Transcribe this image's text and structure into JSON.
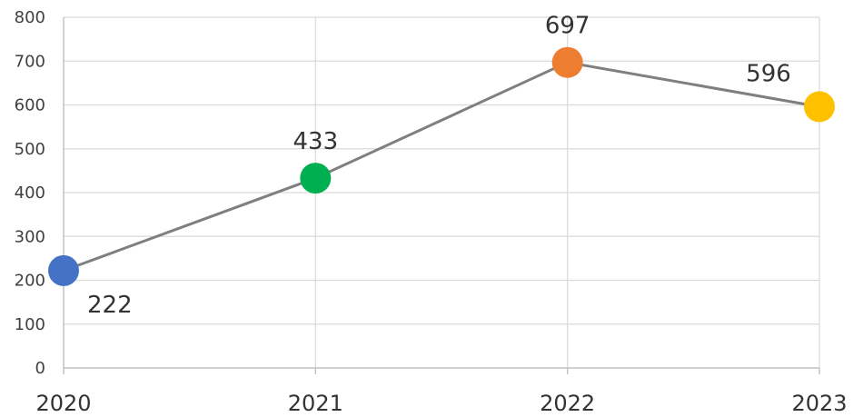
{
  "chart_data": {
    "type": "line",
    "title": "",
    "xlabel": "",
    "ylabel": "",
    "categories": [
      "2020",
      "2021",
      "2022",
      "2023"
    ],
    "series": [
      {
        "values": [
          222,
          433,
          697,
          596
        ],
        "point_colors": [
          "#4472c4",
          "#00b050",
          "#ed7d31",
          "#ffc000"
        ],
        "line_color": "#7f7f7f"
      }
    ],
    "data_labels": [
      "222",
      "433",
      "697",
      "596"
    ],
    "data_label_positions": [
      "below",
      "above",
      "above",
      "above"
    ],
    "ylim": [
      0,
      800
    ],
    "yticks": [
      0,
      100,
      200,
      300,
      400,
      500,
      600,
      700,
      800
    ],
    "ytick_labels": [
      "0",
      "100",
      "200",
      "300",
      "400",
      "500",
      "600",
      "700",
      "800"
    ],
    "grid": true,
    "legend": "none"
  }
}
